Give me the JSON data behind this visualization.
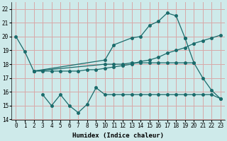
{
  "xlabel": "Humidex (Indice chaleur)",
  "xlim": [
    -0.5,
    23.5
  ],
  "ylim": [
    14,
    22.5
  ],
  "yticks": [
    14,
    15,
    16,
    17,
    18,
    19,
    20,
    21,
    22
  ],
  "xticks": [
    0,
    1,
    2,
    3,
    4,
    5,
    6,
    7,
    8,
    9,
    10,
    11,
    12,
    13,
    14,
    15,
    16,
    17,
    18,
    19,
    20,
    21,
    22,
    23
  ],
  "bg_color": "#ceeaea",
  "grid_color": "#d8a8a8",
  "line_color": "#1a6b6b",
  "line1_x": [
    0,
    1,
    2,
    10,
    11,
    13,
    14,
    15,
    16,
    17,
    18,
    19
  ],
  "line1_y": [
    20.0,
    18.9,
    17.5,
    18.3,
    19.4,
    19.9,
    20.0,
    20.8,
    21.1,
    21.7,
    21.5,
    19.9
  ],
  "line2_x": [
    2,
    3,
    4,
    5,
    6,
    7,
    8,
    9,
    10,
    11,
    12,
    13,
    14,
    15,
    16,
    17,
    18,
    19,
    20,
    21,
    22,
    23
  ],
  "line2_y": [
    17.5,
    17.5,
    17.5,
    17.5,
    17.5,
    17.5,
    17.6,
    17.6,
    17.7,
    17.8,
    17.9,
    18.0,
    18.2,
    18.3,
    18.5,
    18.8,
    19.0,
    19.2,
    19.5,
    19.7,
    19.9,
    20.1
  ],
  "line3_x": [
    2,
    10,
    11,
    12,
    13,
    14,
    15,
    16,
    17,
    18,
    19,
    20
  ],
  "line3_y": [
    17.5,
    18.0,
    18.0,
    18.0,
    18.1,
    18.1,
    18.1,
    18.1,
    18.1,
    18.1,
    18.1,
    18.1
  ],
  "line4_x": [
    3,
    4,
    5,
    6,
    7,
    8,
    9,
    10,
    11,
    12,
    13,
    14,
    15,
    16,
    17,
    18,
    19,
    20,
    21,
    22,
    23
  ],
  "line4_y": [
    15.8,
    15.0,
    15.8,
    15.0,
    14.5,
    15.1,
    16.3,
    15.8,
    15.8,
    15.8,
    15.8,
    15.8,
    15.8,
    15.8,
    15.8,
    15.8,
    15.8,
    15.8,
    15.8,
    15.8,
    15.5
  ],
  "line5_x": [
    19,
    20,
    21,
    22,
    23
  ],
  "line5_y": [
    19.9,
    18.1,
    17.0,
    16.1,
    15.5
  ]
}
